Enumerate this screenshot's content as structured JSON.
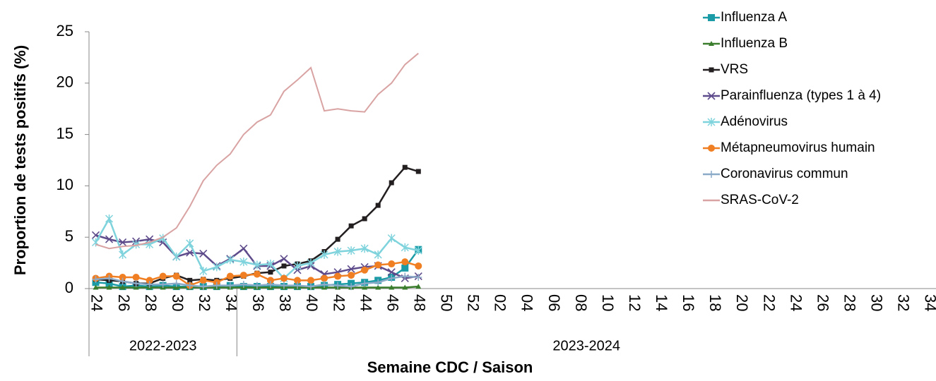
{
  "chart_data": {
    "type": "line",
    "y_label": "Proportion de tests positifs (%)",
    "x_label": "Semaine CDC / Saison",
    "categories": [
      "24",
      null,
      "26",
      null,
      "28",
      null,
      "30",
      null,
      "32",
      null,
      "34",
      null,
      "36",
      null,
      "38",
      null,
      "40",
      null,
      "42",
      null,
      "44",
      null,
      "46",
      null,
      "48",
      null,
      "50",
      null,
      "52",
      null,
      "02",
      null,
      "04",
      null,
      "06",
      null,
      "08",
      null,
      "10",
      null,
      "12",
      null,
      "14",
      null,
      "16",
      null,
      "18",
      null,
      "20",
      null,
      "22",
      null,
      "24",
      null,
      "26",
      null,
      "28",
      null,
      "30",
      null,
      "32",
      null,
      "34"
    ],
    "groups": [
      {
        "label": "2022-2023",
        "span": 11
      },
      {
        "label": "2023-2024",
        "span": 52
      }
    ],
    "ylim": [
      0,
      25
    ],
    "yticks": [
      0,
      5,
      10,
      15,
      20,
      25
    ],
    "grid": false,
    "legend": "right",
    "series": [
      {
        "name": "Influenza A",
        "color": "#1a9ba6",
        "marker": "square",
        "values": [
          0.6,
          0.5,
          0.2,
          0.3,
          0.2,
          0.3,
          0.2,
          0.2,
          0.2,
          0.2,
          0.3,
          0.2,
          0.2,
          0.2,
          0.2,
          0.2,
          0.2,
          0.3,
          0.4,
          0.5,
          0.6,
          0.8,
          1.1,
          2.0,
          3.8,
          null,
          null,
          null,
          null,
          null,
          null,
          null,
          null,
          null,
          null,
          null,
          null,
          null,
          null,
          null,
          null,
          null,
          null,
          null,
          null,
          null,
          null,
          null,
          null,
          null,
          null,
          null,
          null,
          null,
          null,
          null,
          null,
          null,
          null,
          null,
          null,
          null,
          null
        ]
      },
      {
        "name": "Influenza B",
        "color": "#3a7d2c",
        "marker": "triangle",
        "values": [
          0.1,
          0.1,
          0.1,
          0.1,
          0.1,
          0.1,
          0.1,
          0.1,
          0.1,
          0.1,
          0.1,
          0.1,
          0.1,
          0.1,
          0.1,
          0.1,
          0.1,
          0.1,
          0.1,
          0.1,
          0.1,
          0.1,
          0.1,
          0.1,
          0.2,
          null,
          null,
          null,
          null,
          null,
          null,
          null,
          null,
          null,
          null,
          null,
          null,
          null,
          null,
          null,
          null,
          null,
          null,
          null,
          null,
          null,
          null,
          null,
          null,
          null,
          null,
          null,
          null,
          null,
          null,
          null,
          null,
          null,
          null,
          null,
          null,
          null,
          null
        ]
      },
      {
        "name": "VRS",
        "color": "#231f20",
        "marker": "smallsquare",
        "values": [
          0.9,
          0.8,
          0.7,
          0.5,
          0.5,
          1.0,
          1.3,
          0.8,
          0.9,
          0.8,
          1.0,
          1.2,
          1.5,
          1.6,
          2.2,
          2.4,
          2.7,
          3.6,
          4.8,
          6.1,
          6.8,
          8.1,
          10.3,
          11.8,
          11.4,
          null,
          null,
          null,
          null,
          null,
          null,
          null,
          null,
          null,
          null,
          null,
          null,
          null,
          null,
          null,
          null,
          null,
          null,
          null,
          null,
          null,
          null,
          null,
          null,
          null,
          null,
          null,
          null,
          null,
          null,
          null,
          null,
          null,
          null,
          null,
          null,
          null,
          null
        ]
      },
      {
        "name": "Parainfluenza (types 1 à 4)",
        "color": "#5e4b8b",
        "marker": "x",
        "values": [
          5.2,
          4.8,
          4.5,
          4.6,
          4.8,
          4.5,
          3.1,
          3.5,
          3.4,
          2.2,
          2.9,
          3.9,
          2.2,
          2.2,
          2.9,
          1.8,
          2.2,
          1.4,
          1.6,
          1.9,
          2.1,
          2.2,
          1.6,
          1.0,
          1.2,
          null,
          null,
          null,
          null,
          null,
          null,
          null,
          null,
          null,
          null,
          null,
          null,
          null,
          null,
          null,
          null,
          null,
          null,
          null,
          null,
          null,
          null,
          null,
          null,
          null,
          null,
          null,
          null,
          null,
          null,
          null,
          null,
          null,
          null,
          null,
          null,
          null,
          null
        ]
      },
      {
        "name": "Adénovirus",
        "color": "#7fd3dc",
        "marker": "star",
        "values": [
          4.5,
          6.8,
          3.3,
          4.3,
          4.3,
          4.9,
          3.1,
          4.4,
          1.7,
          2.1,
          2.8,
          2.6,
          2.3,
          2.4,
          1.0,
          2.2,
          2.5,
          3.3,
          3.6,
          3.7,
          3.9,
          3.3,
          4.9,
          4.0,
          3.7,
          null,
          null,
          null,
          null,
          null,
          null,
          null,
          null,
          null,
          null,
          null,
          null,
          null,
          null,
          null,
          null,
          null,
          null,
          null,
          null,
          null,
          null,
          null,
          null,
          null,
          null,
          null,
          null,
          null,
          null,
          null,
          null,
          null,
          null,
          null,
          null,
          null,
          null
        ]
      },
      {
        "name": "Métapneumovirus humain",
        "color": "#f07f23",
        "marker": "circle",
        "values": [
          1.0,
          1.2,
          1.1,
          1.1,
          0.8,
          1.2,
          1.2,
          0.3,
          0.8,
          0.6,
          1.2,
          1.3,
          1.4,
          0.8,
          1.0,
          0.8,
          0.8,
          1.0,
          1.2,
          1.3,
          1.8,
          2.3,
          2.4,
          2.6,
          2.2,
          null,
          null,
          null,
          null,
          null,
          null,
          null,
          null,
          null,
          null,
          null,
          null,
          null,
          null,
          null,
          null,
          null,
          null,
          null,
          null,
          null,
          null,
          null,
          null,
          null,
          null,
          null,
          null,
          null,
          null,
          null,
          null,
          null,
          null,
          null,
          null,
          null,
          null
        ]
      },
      {
        "name": "Coronavirus commun",
        "color": "#8aaac8",
        "marker": "plus",
        "values": [
          0.9,
          1.0,
          0.7,
          0.5,
          0.4,
          0.4,
          0.5,
          0.3,
          0.2,
          0.3,
          0.3,
          0.4,
          0.3,
          0.4,
          0.3,
          0.3,
          0.2,
          0.4,
          0.3,
          0.2,
          0.5,
          0.6,
          1.0,
          1.2,
          1.1,
          null,
          null,
          null,
          null,
          null,
          null,
          null,
          null,
          null,
          null,
          null,
          null,
          null,
          null,
          null,
          null,
          null,
          null,
          null,
          null,
          null,
          null,
          null,
          null,
          null,
          null,
          null,
          null,
          null,
          null,
          null,
          null,
          null,
          null,
          null,
          null,
          null,
          null
        ]
      },
      {
        "name": "SRAS-CoV-2",
        "color": "#d9a3a3",
        "marker": "none",
        "values": [
          4.3,
          3.9,
          4.1,
          4.2,
          4.5,
          5.0,
          5.9,
          8.0,
          10.5,
          12.0,
          13.1,
          15.0,
          16.2,
          16.9,
          19.2,
          20.3,
          21.5,
          17.3,
          17.5,
          17.3,
          17.2,
          18.9,
          20.0,
          21.8,
          22.9,
          null,
          null,
          null,
          null,
          null,
          null,
          null,
          null,
          null,
          null,
          null,
          null,
          null,
          null,
          null,
          null,
          null,
          null,
          null,
          null,
          null,
          null,
          null,
          null,
          null,
          null,
          null,
          null,
          null,
          null,
          null,
          null,
          null,
          null,
          null,
          null,
          null,
          null
        ]
      }
    ]
  }
}
